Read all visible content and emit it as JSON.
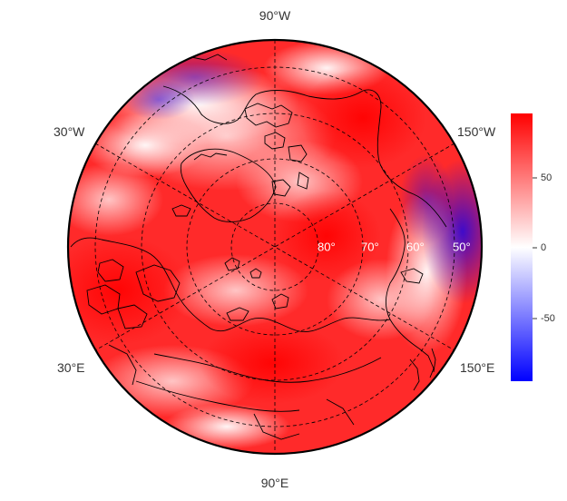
{
  "map": {
    "projection": "north polar stereographic",
    "center_latitude": 90,
    "minimum_latitude": 40,
    "longitude_labels": [
      {
        "text": "90°W",
        "lon": -90
      },
      {
        "text": "150°W",
        "lon": -150
      },
      {
        "text": "30°W",
        "lon": -30
      },
      {
        "text": "30°E",
        "lon": 30
      },
      {
        "text": "150°E",
        "lon": 150
      },
      {
        "text": "90°E",
        "lon": 90
      }
    ],
    "latitude_labels": [
      {
        "text": "80°",
        "lat": 80
      },
      {
        "text": "70°",
        "lat": 70
      },
      {
        "text": "60°",
        "lat": 60
      },
      {
        "text": "50°",
        "lat": 50
      }
    ],
    "graticule_latitudes": [
      50,
      60,
      70,
      80
    ],
    "graticule_longitudes": [
      -150,
      -90,
      -30,
      30,
      90,
      150
    ],
    "graticule_style": "dashed black",
    "coastlines": "black thin lines",
    "field_pattern": "mostly positive (red) over the Arctic, Eurasia and Greenland; negative (blue) patches over the Gulf of Alaska / northeast Pacific and near Baffin Bay / Hudson Bay"
  },
  "colorbar": {
    "ticks": [
      "50",
      "0",
      "-50"
    ],
    "tick_values": [
      50,
      0,
      -50
    ],
    "range": [
      -95,
      95
    ],
    "colors": {
      "high": "#ff0000",
      "mid": "#ffffff",
      "low": "#0000ff"
    }
  }
}
